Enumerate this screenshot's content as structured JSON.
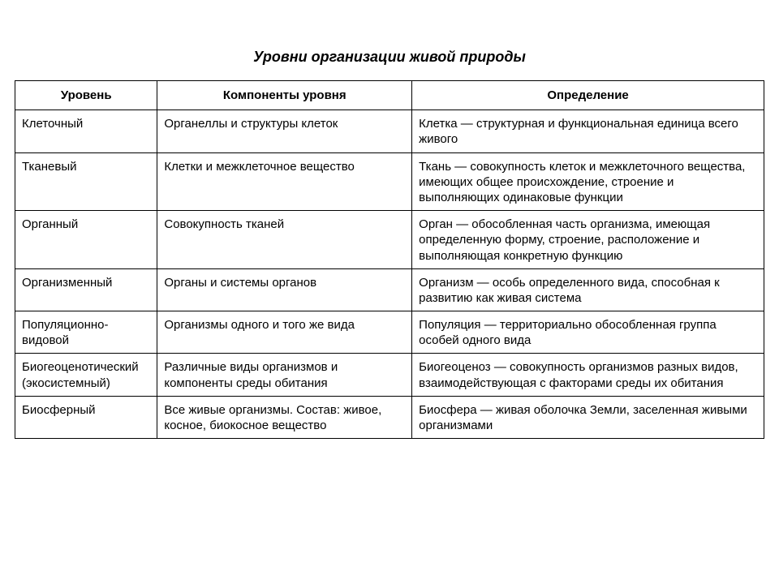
{
  "title": "Уровни организации живой природы",
  "table": {
    "columns": [
      "Уровень",
      "Компоненты уровня",
      "Определение"
    ],
    "column_widths_pct": [
      19,
      34,
      47
    ],
    "border_color": "#000000",
    "background_color": "#ffffff",
    "text_color": "#000000",
    "header_fontweight": "bold",
    "body_fontsize": 15,
    "header_fontsize": 15,
    "title_fontsize": 18,
    "title_fontstyle": "italic",
    "title_fontweight": "bold",
    "rows": [
      {
        "level": "Клеточный",
        "components": "Органеллы и структуры клеток",
        "definition": "Клетка — структурная и функциональная единица всего живого"
      },
      {
        "level": "Тканевый",
        "components": "Клетки и межклеточное вещество",
        "definition": "Ткань — совокупность клеток и межклеточ­ного вещества, имеющих общее происхож­дение, строение и выполняющих одинако­вые функции"
      },
      {
        "level": "Органный",
        "components": "Совокупность тканей",
        "definition": "Орган — обособленная часть организма, имеющая определенную форму, строение, расположение и выполняющая конкретную функцию"
      },
      {
        "level": "Организменный",
        "components": "Органы и системы органов",
        "definition": "Организм — особь определенного вида, способная к развитию как живая система"
      },
      {
        "level": "Популяционно-видовой",
        "components": "Организмы одного и того же вида",
        "definition": "Популяция — территориально обособлен­ная группа особей одного вида"
      },
      {
        "level": "Биогеоценотиче­ский (экосистем­ный)",
        "components": "Различные виды организмов и компоненты среды обитания",
        "definition": "Биогеоценоз — совокупность организмов разных видов, взаимодействующая с фак­торами среды их обитания"
      },
      {
        "level": "Биосферный",
        "components": "Все живые организмы. Состав: жи­вое, косное, биокосное вещество",
        "definition": "Биосфера — живая оболочка Земли, заселенная живыми организмами"
      }
    ]
  }
}
